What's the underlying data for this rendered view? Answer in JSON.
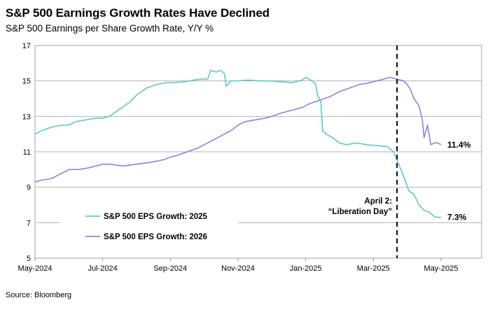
{
  "header": {
    "title": "S&P 500 Earnings Growth Rates Have Declined",
    "subtitle": "S&P 500 Earnings per Share Growth Rate, Y/Y %"
  },
  "footer": {
    "source": "Source: Bloomberg"
  },
  "colors": {
    "series_2025": "#5ec8c0",
    "series_2026": "#8a84dc",
    "grid": "#b3b3b3",
    "vline": "#000000"
  },
  "chart_data": {
    "type": "line",
    "title": "S&P 500 Earnings Growth Rates Have Declined",
    "subtitle": "S&P 500 Earnings per Share Growth Rate, Y/Y %",
    "xlabel": "",
    "ylabel": "",
    "x_range": [
      0,
      13.2
    ],
    "x_unit": "months since May-2024",
    "ylim": [
      5,
      17
    ],
    "yticks": [
      5,
      7,
      9,
      11,
      13,
      15,
      17
    ],
    "xticks": [
      {
        "x": 0,
        "label": "May-2024"
      },
      {
        "x": 2,
        "label": "Jul-2024"
      },
      {
        "x": 4,
        "label": "Sep-2024"
      },
      {
        "x": 6,
        "label": "Nov-2024"
      },
      {
        "x": 8,
        "label": "Jan-2025"
      },
      {
        "x": 10,
        "label": "Mar-2025"
      },
      {
        "x": 12,
        "label": "May-2025"
      }
    ],
    "grid": "horizontal",
    "legend": [
      {
        "name": "S&P 500 EPS Growth: 2025",
        "series_index": 0
      },
      {
        "name": "S&P 500 EPS Growth: 2026",
        "series_index": 1
      }
    ],
    "series": [
      {
        "name": "S&P 500 EPS Growth: 2025",
        "color": "#5ec8c0",
        "x": [
          0,
          0.2,
          0.5,
          0.8,
          1.0,
          1.2,
          1.5,
          1.8,
          2.0,
          2.2,
          2.5,
          2.8,
          3.0,
          3.3,
          3.6,
          3.9,
          4.1,
          4.4,
          4.7,
          4.9,
          5.1,
          5.2,
          5.35,
          5.5,
          5.6,
          5.65,
          5.8,
          6.0,
          6.3,
          6.6,
          7.0,
          7.3,
          7.6,
          7.9,
          8.0,
          8.1,
          8.2,
          8.3,
          8.35,
          8.45,
          8.5,
          8.6,
          8.8,
          9.0,
          9.2,
          9.5,
          9.8,
          10.1,
          10.4,
          10.6,
          10.75,
          10.9,
          11.05,
          11.2,
          11.35,
          11.5,
          11.65,
          11.8,
          11.9,
          12.0
        ],
        "y": [
          12.0,
          12.2,
          12.4,
          12.5,
          12.5,
          12.7,
          12.8,
          12.9,
          12.9,
          13.0,
          13.4,
          13.8,
          14.2,
          14.6,
          14.8,
          14.9,
          14.9,
          14.95,
          15.05,
          15.1,
          15.1,
          15.6,
          15.5,
          15.6,
          15.4,
          14.7,
          15.0,
          15.0,
          15.05,
          15.0,
          15.0,
          14.95,
          14.9,
          15.05,
          15.2,
          15.1,
          15.0,
          14.8,
          14.2,
          13.8,
          12.2,
          12.0,
          11.8,
          11.5,
          11.4,
          11.5,
          11.4,
          11.35,
          11.3,
          11.0,
          10.3,
          9.6,
          8.8,
          8.6,
          8.0,
          7.7,
          7.6,
          7.35,
          7.3,
          7.3
        ]
      },
      {
        "name": "S&P 500 EPS Growth: 2026",
        "color": "#8a84dc",
        "x": [
          0,
          0.2,
          0.5,
          0.8,
          1.0,
          1.3,
          1.6,
          2.0,
          2.2,
          2.6,
          3.0,
          3.4,
          3.8,
          4.0,
          4.2,
          4.5,
          4.8,
          5.0,
          5.2,
          5.5,
          5.8,
          6.0,
          6.2,
          6.5,
          6.8,
          7.0,
          7.3,
          7.6,
          7.9,
          8.1,
          8.4,
          8.7,
          9.0,
          9.3,
          9.6,
          9.9,
          10.1,
          10.3,
          10.5,
          10.7,
          10.8,
          10.9,
          11.0,
          11.1,
          11.2,
          11.35,
          11.45,
          11.5,
          11.6,
          11.7,
          11.8,
          11.9,
          12.0
        ],
        "y": [
          9.3,
          9.4,
          9.5,
          9.8,
          10.0,
          10.0,
          10.1,
          10.3,
          10.3,
          10.2,
          10.3,
          10.4,
          10.55,
          10.7,
          10.8,
          11.0,
          11.2,
          11.4,
          11.6,
          11.9,
          12.2,
          12.5,
          12.7,
          12.8,
          12.9,
          13.0,
          13.2,
          13.35,
          13.5,
          13.7,
          13.9,
          14.1,
          14.4,
          14.6,
          14.8,
          14.9,
          15.0,
          15.1,
          15.2,
          15.1,
          15.05,
          15.0,
          14.8,
          14.5,
          14.0,
          13.6,
          12.8,
          11.8,
          12.5,
          11.4,
          11.5,
          11.5,
          11.4
        ]
      }
    ],
    "annotations": [
      {
        "type": "vline",
        "x": 10.7,
        "style": "dashed"
      },
      {
        "type": "text",
        "lines": [
          "April 2:",
          "“Liberation Day”"
        ],
        "anchor_x": 10.7,
        "anchor_y": 7.6
      },
      {
        "type": "end-label",
        "text": "11.4%",
        "series_index": 1
      },
      {
        "type": "end-label",
        "text": "7.3%",
        "series_index": 0
      }
    ]
  }
}
